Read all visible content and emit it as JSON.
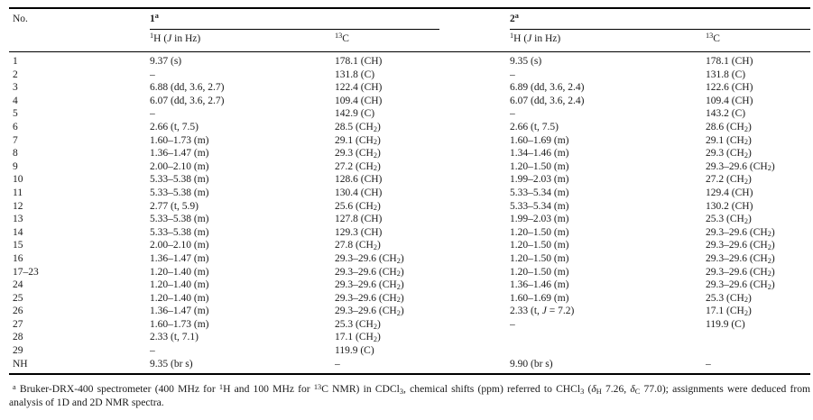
{
  "page": {
    "background": "#ffffff",
    "text_color": "#1a1a1a",
    "rule_color": "#000000"
  },
  "table": {
    "header": {
      "no": "No.",
      "compound1": "1<sup>a</sup>",
      "compound2": "2<sup>a</sup>"
    },
    "subheader": {
      "c1_h": "<sup>1</sup>H (<i>J</i> in Hz)",
      "c1_c": "<sup>13</sup>C",
      "c2_h": "<sup>1</sup>H (<i>J</i> in Hz)",
      "c2_c": "<sup>13</sup>C"
    },
    "rows": [
      [
        "1",
        "9.37 (s)",
        "178.1 (CH)",
        "9.35 (s)",
        "178.1 (CH)"
      ],
      [
        "2",
        "–",
        "131.8 (C)",
        "–",
        "131.8 (C)"
      ],
      [
        "3",
        "6.88 (dd, 3.6, 2.7)",
        "122.4 (CH)",
        "6.89 (dd, 3.6, 2.4)",
        "122.6 (CH)"
      ],
      [
        "4",
        "6.07 (dd, 3.6, 2.7)",
        "109.4 (CH)",
        "6.07 (dd, 3.6, 2.4)",
        "109.4 (CH)"
      ],
      [
        "5",
        "–",
        "142.9 (C)",
        "–",
        "143.2 (C)"
      ],
      [
        "6",
        "2.66 (t, 7.5)",
        "28.5 (CH<sub>2</sub>)",
        "2.66 (t, 7.5)",
        "28.6 (CH<sub>2</sub>)"
      ],
      [
        "7",
        "1.60–1.73 (m)",
        "29.1 (CH<sub>2</sub>)",
        "1.60–1.69 (m)",
        "29.1 (CH<sub>2</sub>)"
      ],
      [
        "8",
        "1.36–1.47 (m)",
        "29.3 (CH<sub>2</sub>)",
        "1.34–1.46 (m)",
        "29.3 (CH<sub>2</sub>)"
      ],
      [
        "9",
        "2.00–2.10 (m)",
        "27.2 (CH<sub>2</sub>)",
        "1.20–1.50 (m)",
        "29.3–29.6 (CH<sub>2</sub>)"
      ],
      [
        "10",
        "5.33–5.38 (m)",
        "128.6 (CH)",
        "1.99–2.03 (m)",
        "27.2 (CH<sub>2</sub>)"
      ],
      [
        "11",
        "5.33–5.38 (m)",
        "130.4 (CH)",
        "5.33–5.34 (m)",
        "129.4 (CH)"
      ],
      [
        "12",
        "2.77 (t, 5.9)",
        "25.6 (CH<sub>2</sub>)",
        "5.33–5.34 (m)",
        "130.2 (CH)"
      ],
      [
        "13",
        "5.33–5.38 (m)",
        "127.8 (CH)",
        "1.99–2.03 (m)",
        "25.3 (CH<sub>2</sub>)"
      ],
      [
        "14",
        "5.33–5.38 (m)",
        "129.3 (CH)",
        "1.20–1.50 (m)",
        "29.3–29.6 (CH<sub>2</sub>)"
      ],
      [
        "15",
        "2.00–2.10 (m)",
        "27.8 (CH<sub>2</sub>)",
        "1.20–1.50 (m)",
        "29.3–29.6 (CH<sub>2</sub>)"
      ],
      [
        "16",
        "1.36–1.47 (m)",
        "29.3–29.6 (CH<sub>2</sub>)",
        "1.20–1.50 (m)",
        "29.3–29.6 (CH<sub>2</sub>)"
      ],
      [
        "17–23",
        "1.20–1.40 (m)",
        "29.3–29.6 (CH<sub>2</sub>)",
        "1.20–1.50 (m)",
        "29.3–29.6 (CH<sub>2</sub>)"
      ],
      [
        "24",
        "1.20–1.40 (m)",
        "29.3–29.6 (CH<sub>2</sub>)",
        "1.36–1.46 (m)",
        "29.3–29.6 (CH<sub>2</sub>)"
      ],
      [
        "25",
        "1.20–1.40 (m)",
        "29.3–29.6 (CH<sub>2</sub>)",
        "1.60–1.69 (m)",
        "25.3 (CH<sub>2</sub>)"
      ],
      [
        "26",
        "1.36–1.47 (m)",
        "29.3–29.6 (CH<sub>2</sub>)",
        "2.33 (t, <i>J</i> = 7.2)",
        "17.1 (CH<sub>2</sub>)"
      ],
      [
        "27",
        "1.60–1.73 (m)",
        "25.3 (CH<sub>2</sub>)",
        "–",
        "119.9 (C)"
      ],
      [
        "28",
        "2.33 (t, 7.1)",
        "17.1 (CH<sub>2</sub>)",
        "",
        ""
      ],
      [
        "29",
        "–",
        "119.9 (C)",
        "",
        ""
      ],
      [
        "NH",
        "9.35 (br s)",
        "–",
        "9.90 (br s)",
        "–"
      ]
    ]
  },
  "footnote": {
    "html": "<sup>a</sup> Bruker-DRX-400 spectrometer (400 MHz for <sup>1</sup>H and 100 MHz for <sup>13</sup>C NMR) in CDCl<sub>3</sub>, chemical shifts (ppm) referred to CHCl<sub>3</sub> (<i>δ</i><sub>H</sub> 7.26, <i>δ</i><sub>C</sub> 77.0); assignments were deduced from analysis of 1D and 2D NMR spectra."
  }
}
